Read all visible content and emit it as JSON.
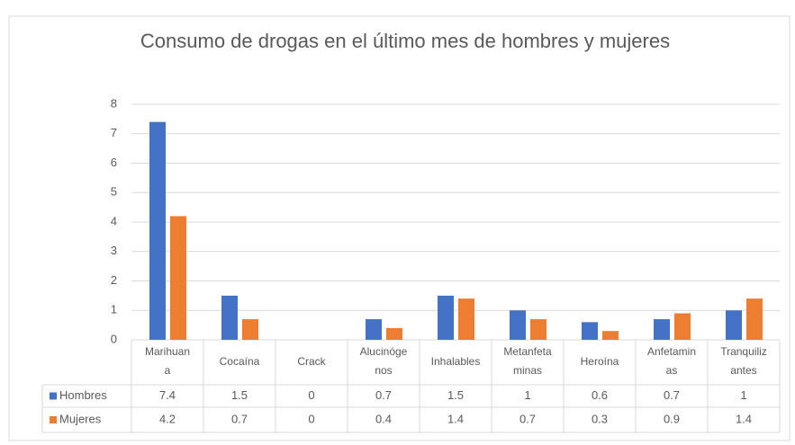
{
  "chart_data": {
    "type": "bar",
    "title": "Consumo de drogas en el último mes de hombres y mujeres",
    "categories": [
      "Marihuana",
      "Cocaína",
      "Crack",
      "Alucinógenos",
      "Inhalables",
      "Metanfetaminas",
      "Heroína",
      "Anfetaminas",
      "Tranquilizantes"
    ],
    "series": [
      {
        "name": "Hombres",
        "color": "#4472c4",
        "values": [
          7.4,
          1.5,
          0,
          0.7,
          1.5,
          1,
          0.6,
          0.7,
          1
        ]
      },
      {
        "name": "Mujeres",
        "color": "#ed7d31",
        "values": [
          4.2,
          0.7,
          0,
          0.4,
          1.4,
          0.7,
          0.3,
          0.9,
          1.4
        ]
      }
    ],
    "ylim": [
      0,
      8
    ],
    "yticks": [
      0,
      1,
      2,
      3,
      4,
      5,
      6,
      7,
      8
    ],
    "grid": true
  }
}
